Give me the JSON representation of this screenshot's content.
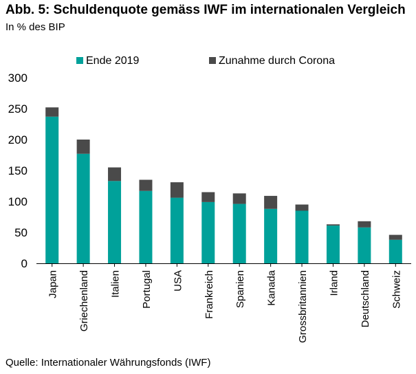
{
  "chart_data": {
    "type": "bar",
    "stacked": true,
    "title": "Abb. 5: Schuldenquote gemäss IWF im internationalen Vergleich",
    "subtitle": "In % des BIP",
    "source": "Quelle: Internationaler Währungsfonds (IWF)",
    "categories": [
      "Japan",
      "Griechenland",
      "Italien",
      "Portugal",
      "USA",
      "Frankreich",
      "Spanien",
      "Kanada",
      "Grossbritannien",
      "Irland",
      "Deutschland",
      "Schweiz"
    ],
    "series": [
      {
        "name": "Ende 2019",
        "color": "#00A19A",
        "values": [
          237,
          177,
          133,
          117,
          106,
          99,
          96,
          88,
          85,
          61,
          58,
          38
        ]
      },
      {
        "name": "Zunahme durch Corona",
        "color": "#4A4A4A",
        "values": [
          15,
          23,
          22,
          18,
          25,
          16,
          17,
          21,
          10,
          2,
          10,
          8
        ]
      }
    ],
    "ylim": [
      0,
      300
    ],
    "yticks": [
      0,
      50,
      100,
      150,
      200,
      250,
      300
    ],
    "xlabel": "",
    "ylabel": "",
    "legend": "top"
  }
}
